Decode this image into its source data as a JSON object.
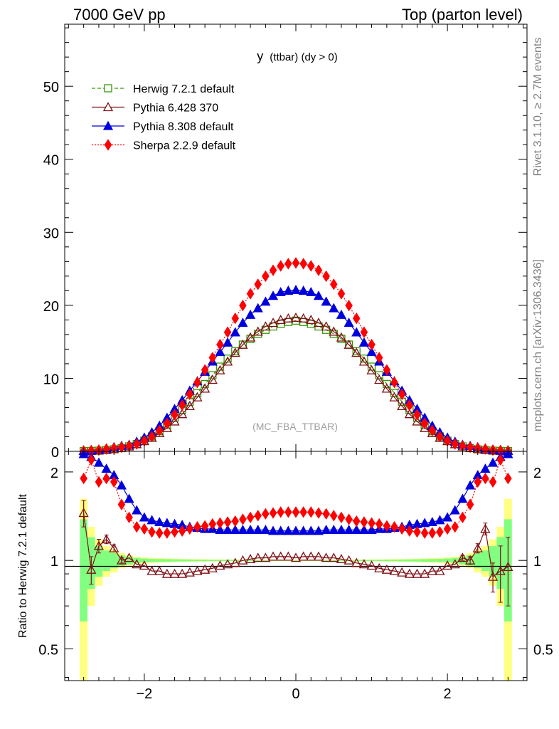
{
  "header": {
    "left": "7000 GeV pp",
    "right": "Top (parton level)"
  },
  "side_labels": {
    "rivet": "Rivet 3.1.10, ≥ 2.7M events",
    "mcplots": "mcplots.cern.ch [arXiv:1306.3436]"
  },
  "chart_data": {
    "type": "line",
    "title": "y (ttbar) (dy > 0)",
    "title_main": "y",
    "title_sub": "(ttbar) (dy > 0)",
    "watermark": "(MC_FBA_TTBAR)",
    "xlim": [
      -3.05,
      3.05
    ],
    "ylim": [
      0,
      58.5
    ],
    "x_ticks": [
      -2,
      0,
      2
    ],
    "x_tick_labels": [
      "−2",
      "0",
      "2"
    ],
    "y_ticks": [
      0,
      10,
      20,
      30,
      40,
      50
    ],
    "y_tick_labels": [
      "0",
      "10",
      "20",
      "30",
      "40",
      "50"
    ],
    "legend_position": "top-left",
    "colors": {
      "herwig": "#339900",
      "pythia6": "#7f1016",
      "pythia8": "#0000dd",
      "sherpa": "#ff0000",
      "band_outer": "#ffff80",
      "band_inner": "#80ff80"
    },
    "x": [
      -2.8,
      -2.7,
      -2.6,
      -2.5,
      -2.4,
      -2.3,
      -2.2,
      -2.1,
      -2.0,
      -1.9,
      -1.8,
      -1.7,
      -1.6,
      -1.5,
      -1.4,
      -1.3,
      -1.2,
      -1.1,
      -1.0,
      -0.9,
      -0.8,
      -0.7,
      -0.6,
      -0.5,
      -0.4,
      -0.3,
      -0.2,
      -0.1,
      0.0,
      0.1,
      0.2,
      0.3,
      0.4,
      0.5,
      0.6,
      0.7,
      0.8,
      0.9,
      1.0,
      1.1,
      1.2,
      1.3,
      1.4,
      1.5,
      1.6,
      1.7,
      1.8,
      1.9,
      2.0,
      2.1,
      2.2,
      2.3,
      2.4,
      2.5,
      2.6,
      2.7,
      2.8
    ],
    "series": [
      {
        "name": "Herwig 7.2.1 default",
        "values": [
          0.03,
          0.06,
          0.1,
          0.17,
          0.28,
          0.44,
          0.68,
          1.01,
          1.46,
          2.04,
          2.76,
          3.61,
          4.58,
          5.65,
          6.8,
          8.0,
          9.22,
          10.43,
          11.6,
          12.7,
          13.71,
          14.62,
          15.41,
          16.09,
          16.65,
          17.1,
          17.45,
          17.72,
          17.9,
          17.72,
          17.45,
          17.1,
          16.65,
          16.09,
          15.41,
          14.62,
          13.71,
          12.7,
          11.6,
          10.43,
          9.22,
          8.0,
          6.8,
          5.65,
          4.58,
          3.61,
          2.76,
          2.04,
          1.46,
          1.01,
          0.68,
          0.44,
          0.28,
          0.17,
          0.1,
          0.06,
          0.03
        ]
      },
      {
        "name": "Pythia 6.428 370",
        "values": [
          0.05,
          0.06,
          0.12,
          0.2,
          0.32,
          0.48,
          0.68,
          0.98,
          1.4,
          1.86,
          2.5,
          3.2,
          4.1,
          5.1,
          6.2,
          7.4,
          8.6,
          9.8,
          11.1,
          12.3,
          13.5,
          14.6,
          15.6,
          16.4,
          17.1,
          17.6,
          18.0,
          18.2,
          18.3,
          18.2,
          18.0,
          17.6,
          17.1,
          16.4,
          15.6,
          14.6,
          13.5,
          12.3,
          11.1,
          9.8,
          8.6,
          7.4,
          6.2,
          5.1,
          4.1,
          3.2,
          2.5,
          1.86,
          1.4,
          0.98,
          0.68,
          0.48,
          0.32,
          0.2,
          0.12,
          0.06,
          0.05
        ]
      },
      {
        "name": "Pythia 8.308 default",
        "values": [
          0.08,
          0.15,
          0.22,
          0.38,
          0.58,
          0.75,
          0.9,
          1.32,
          1.88,
          2.6,
          3.5,
          4.6,
          5.8,
          7.0,
          8.3,
          9.6,
          10.9,
          12.3,
          13.6,
          14.9,
          16.3,
          17.6,
          18.7,
          19.6,
          20.5,
          21.3,
          21.8,
          22.0,
          22.1,
          22.0,
          21.8,
          21.3,
          20.5,
          19.6,
          18.7,
          17.6,
          16.3,
          14.9,
          13.6,
          12.3,
          10.9,
          9.6,
          8.3,
          7.0,
          5.8,
          4.6,
          3.5,
          2.6,
          1.88,
          1.32,
          0.9,
          0.75,
          0.58,
          0.38,
          0.22,
          0.15,
          0.08
        ]
      },
      {
        "name": "Sherpa 2.2.9 default",
        "values": [
          0.06,
          0.12,
          0.18,
          0.32,
          0.44,
          0.57,
          0.73,
          1.01,
          1.44,
          2.04,
          2.86,
          3.83,
          5.02,
          6.33,
          7.81,
          9.44,
          11.15,
          12.83,
          14.62,
          16.32,
          18.21,
          19.97,
          21.59,
          22.88,
          23.99,
          24.8,
          25.4,
          25.7,
          25.8,
          25.7,
          25.4,
          24.8,
          23.99,
          22.88,
          21.59,
          19.97,
          18.21,
          16.32,
          14.62,
          12.83,
          11.15,
          9.44,
          7.81,
          6.33,
          5.02,
          3.83,
          2.86,
          2.04,
          1.44,
          1.01,
          0.73,
          0.57,
          0.44,
          0.32,
          0.18,
          0.12,
          0.06
        ]
      }
    ],
    "ratio": {
      "ylabel": "Ratio to Herwig 7.2.1 default",
      "ylim": [
        0.39,
        2.35
      ],
      "log_scale": true,
      "y_ticks": [
        0.5,
        1,
        2
      ],
      "y_tick_labels": [
        "0.5",
        "1",
        "2"
      ],
      "band_outer_halfwidth": [
        0.62,
        0.3,
        0.18,
        0.12,
        0.09,
        0.06,
        0.04,
        0.03,
        0.025,
        0.02,
        0.018,
        0.016,
        0.014,
        0.012,
        0.011,
        0.01,
        0.009,
        0.008,
        0.008,
        0.007,
        0.007,
        0.006,
        0.006,
        0.006,
        0.006,
        0.005,
        0.005,
        0.005,
        0.005,
        0.005,
        0.005,
        0.005,
        0.006,
        0.006,
        0.006,
        0.006,
        0.007,
        0.007,
        0.008,
        0.008,
        0.009,
        0.01,
        0.011,
        0.012,
        0.014,
        0.016,
        0.018,
        0.02,
        0.025,
        0.03,
        0.04,
        0.06,
        0.09,
        0.12,
        0.18,
        0.3,
        0.62
      ],
      "band_inner_halfwidth": [
        0.38,
        0.2,
        0.12,
        0.08,
        0.06,
        0.04,
        0.03,
        0.02,
        0.015,
        0.012,
        0.011,
        0.01,
        0.009,
        0.008,
        0.007,
        0.006,
        0.006,
        0.005,
        0.005,
        0.005,
        0.004,
        0.004,
        0.004,
        0.004,
        0.004,
        0.003,
        0.003,
        0.003,
        0.003,
        0.003,
        0.003,
        0.003,
        0.004,
        0.004,
        0.004,
        0.004,
        0.004,
        0.005,
        0.005,
        0.005,
        0.006,
        0.006,
        0.007,
        0.008,
        0.009,
        0.01,
        0.011,
        0.012,
        0.015,
        0.02,
        0.03,
        0.04,
        0.06,
        0.08,
        0.12,
        0.2,
        0.38
      ],
      "pythia6": [
        1.45,
        0.93,
        1.12,
        1.18,
        1.1,
        1.0,
        1.02,
        0.97,
        0.96,
        0.92,
        0.92,
        0.9,
        0.9,
        0.9,
        0.91,
        0.92,
        0.93,
        0.94,
        0.96,
        0.97,
        0.98,
        1.0,
        1.01,
        1.02,
        1.02,
        1.03,
        1.03,
        1.03,
        1.02,
        1.03,
        1.03,
        1.03,
        1.02,
        1.02,
        1.01,
        1.0,
        0.98,
        0.97,
        0.96,
        0.94,
        0.93,
        0.92,
        0.91,
        0.9,
        0.9,
        0.9,
        0.92,
        0.92,
        0.96,
        0.97,
        1.02,
        1.0,
        1.1,
        1.28,
        0.88,
        0.92,
        0.95
      ],
      "pythia6_err": [
        0.15,
        0.1,
        0.06,
        0.04,
        0.03,
        0.02,
        0.01,
        0.01,
        0.01,
        0.01,
        0.01,
        0.01,
        0.01,
        0.01,
        0.01,
        0.01,
        0.01,
        0.01,
        0.01,
        0.01,
        0.01,
        0.01,
        0.01,
        0.01,
        0.01,
        0.01,
        0.01,
        0.01,
        0.01,
        0.01,
        0.01,
        0.01,
        0.01,
        0.01,
        0.01,
        0.01,
        0.01,
        0.01,
        0.01,
        0.01,
        0.01,
        0.01,
        0.01,
        0.01,
        0.01,
        0.01,
        0.01,
        0.01,
        0.01,
        0.01,
        0.02,
        0.03,
        0.04,
        0.06,
        0.1,
        0.2,
        0.25
      ],
      "pythia8": [
        2.3,
        2.25,
        2.15,
        2.05,
        1.95,
        1.8,
        1.62,
        1.48,
        1.4,
        1.37,
        1.35,
        1.34,
        1.33,
        1.32,
        1.3,
        1.29,
        1.28,
        1.28,
        1.27,
        1.27,
        1.27,
        1.27,
        1.27,
        1.27,
        1.27,
        1.26,
        1.26,
        1.26,
        1.26,
        1.26,
        1.26,
        1.26,
        1.27,
        1.27,
        1.27,
        1.27,
        1.27,
        1.27,
        1.27,
        1.28,
        1.28,
        1.29,
        1.3,
        1.32,
        1.33,
        1.34,
        1.35,
        1.37,
        1.4,
        1.48,
        1.62,
        1.8,
        1.95,
        2.05,
        2.15,
        2.25,
        2.3
      ],
      "sherpa": [
        1.9,
        2.2,
        1.85,
        1.9,
        1.85,
        1.55,
        1.4,
        1.3,
        1.28,
        1.25,
        1.24,
        1.24,
        1.25,
        1.26,
        1.28,
        1.3,
        1.31,
        1.33,
        1.34,
        1.35,
        1.36,
        1.38,
        1.4,
        1.42,
        1.44,
        1.45,
        1.46,
        1.46,
        1.46,
        1.46,
        1.46,
        1.45,
        1.44,
        1.42,
        1.4,
        1.38,
        1.36,
        1.35,
        1.34,
        1.33,
        1.31,
        1.3,
        1.28,
        1.26,
        1.25,
        1.24,
        1.24,
        1.25,
        1.28,
        1.3,
        1.4,
        1.55,
        1.85,
        1.9,
        1.85,
        2.2,
        1.9
      ]
    }
  }
}
